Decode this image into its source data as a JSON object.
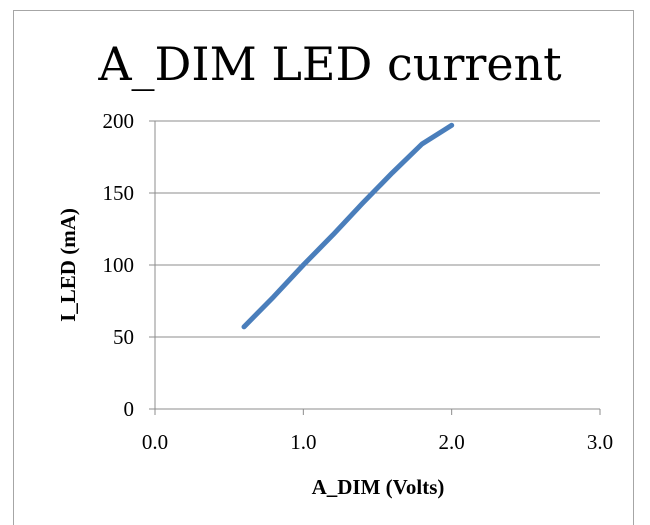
{
  "chart_data": {
    "type": "line",
    "title": "A_DIM LED current",
    "xlabel": "A_DIM (Volts)",
    "ylabel": "I_LED (mA)",
    "xlim": [
      0,
      3
    ],
    "ylim": [
      0,
      200
    ],
    "x_ticks": [
      "0.0",
      "1.0",
      "2.0",
      "3.0"
    ],
    "y_ticks": [
      "0",
      "50",
      "100",
      "150",
      "200"
    ],
    "grid": "horizontal",
    "legend": "none",
    "series": [
      {
        "color": "#4a7ebb",
        "x": [
          0.6,
          0.8,
          1.0,
          1.2,
          1.4,
          1.6,
          1.8,
          2.0
        ],
        "y": [
          57,
          78,
          100,
          121,
          143,
          164,
          184,
          197
        ]
      }
    ]
  }
}
